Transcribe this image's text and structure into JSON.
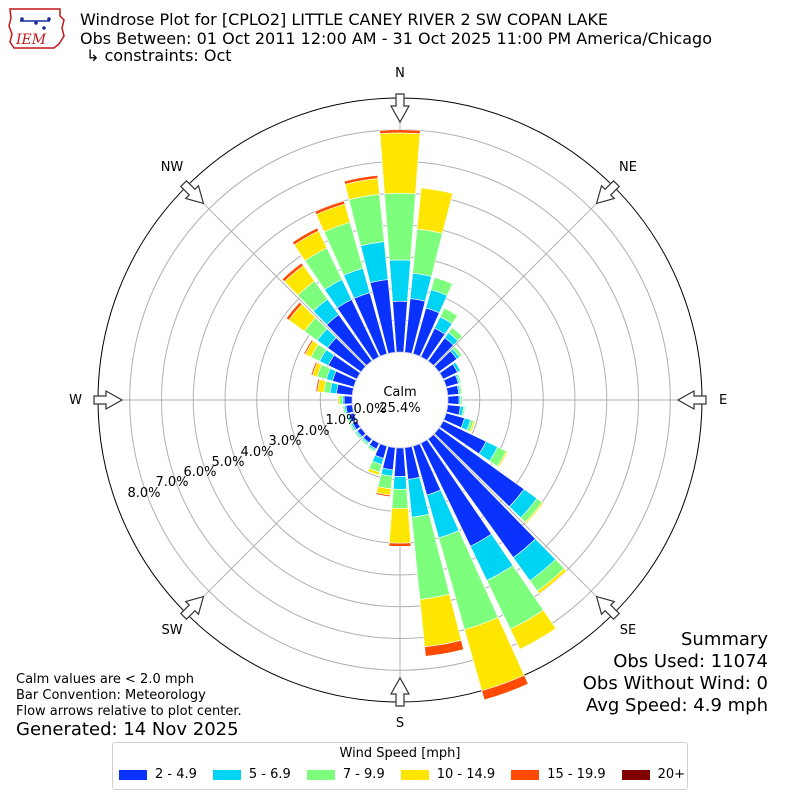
{
  "logo": {
    "text": "IEM"
  },
  "header": {
    "title": "Windrose Plot for [CPLO2] LITTLE CANEY RIVER 2 SW COPAN LAKE",
    "period": "Obs Between: 01 Oct 2011 12:00 AM - 31 Oct 2025 11:00 PM America/Chicago",
    "constraints": "↳ constraints: Oct"
  },
  "summary": {
    "title": "Summary",
    "obs_used": "Obs Used: 11074",
    "obs_without_wind": "Obs Without Wind: 0",
    "avg_speed": "Avg Speed: 4.9 mph"
  },
  "notes": {
    "calm": "Calm values are < 2.0 mph",
    "bar": "Bar Convention: Meteorology",
    "flow": "Flow arrows relative to plot center.",
    "generated": "Generated: 14 Nov 2025"
  },
  "chart_data": {
    "type": "windrose",
    "calm_label": "Calm",
    "calm_value": "25.4%",
    "compass": [
      "N",
      "NE",
      "E",
      "SE",
      "S",
      "SW",
      "W",
      "NW"
    ],
    "radial_ticks": [
      "0.0%",
      "1.0%",
      "2.0%",
      "3.0%",
      "4.0%",
      "5.0%",
      "6.0%",
      "7.0%",
      "8.0%"
    ],
    "radial_max": 8,
    "legend_title": "Wind Speed [mph]",
    "bins": [
      {
        "label": "2 - 4.9",
        "color": "#0a32ff"
      },
      {
        "label": "5 - 6.9",
        "color": "#00d4f4"
      },
      {
        "label": "7 - 9.9",
        "color": "#7dff7d"
      },
      {
        "label": "10 - 14.9",
        "color": "#ffe600"
      },
      {
        "label": "15 - 19.9",
        "color": "#ff4a00"
      },
      {
        "label": "20+",
        "color": "#800000"
      }
    ],
    "directions_deg": [
      0,
      10,
      20,
      30,
      40,
      50,
      60,
      70,
      80,
      90,
      100,
      110,
      120,
      130,
      140,
      150,
      160,
      170,
      180,
      190,
      200,
      210,
      220,
      230,
      240,
      250,
      260,
      270,
      280,
      290,
      300,
      310,
      320,
      330,
      340,
      350
    ],
    "cumulative": [
      [
        1.6,
        2.9,
        5.0,
        6.9,
        7.0,
        7.0
      ],
      [
        1.7,
        2.5,
        3.9,
        5.2,
        5.2,
        5.2
      ],
      [
        1.5,
        2.1,
        2.5,
        2.5,
        2.5,
        2.5
      ],
      [
        1.0,
        1.4,
        1.7,
        1.7,
        1.7,
        1.7
      ],
      [
        0.9,
        1.1,
        1.3,
        1.3,
        1.3,
        1.3
      ],
      [
        0.7,
        0.8,
        0.9,
        0.9,
        0.9,
        0.9
      ],
      [
        0.5,
        0.6,
        0.6,
        0.6,
        0.6,
        0.6
      ],
      [
        0.4,
        0.45,
        0.5,
        0.5,
        0.5,
        0.5
      ],
      [
        0.35,
        0.4,
        0.45,
        0.45,
        0.45,
        0.45
      ],
      [
        0.35,
        0.4,
        0.45,
        0.45,
        0.45,
        0.45
      ],
      [
        0.4,
        0.5,
        0.55,
        0.55,
        0.55,
        0.55
      ],
      [
        0.6,
        0.8,
        0.9,
        0.95,
        0.95,
        0.95
      ],
      [
        1.5,
        1.9,
        2.2,
        2.25,
        2.25,
        2.25
      ],
      [
        3.3,
        3.8,
        4.0,
        4.05,
        4.05,
        4.05
      ],
      [
        4.6,
        5.5,
        5.9,
        6.0,
        6.0,
        6.0
      ],
      [
        3.6,
        4.8,
        6.5,
        7.2,
        7.2,
        7.2
      ],
      [
        1.6,
        3.0,
        6.0,
        8.0,
        8.3,
        8.3
      ],
      [
        1.0,
        2.2,
        4.8,
        6.3,
        6.6,
        6.6
      ],
      [
        0.9,
        1.3,
        1.9,
        3.0,
        3.1,
        3.1
      ],
      [
        0.7,
        0.9,
        1.3,
        1.5,
        1.55,
        1.55
      ],
      [
        0.4,
        0.6,
        0.85,
        0.95,
        0.95,
        0.95
      ],
      [
        0.2,
        0.25,
        0.3,
        0.3,
        0.3,
        0.3
      ],
      [
        0.15,
        0.2,
        0.25,
        0.25,
        0.25,
        0.25
      ],
      [
        0.15,
        0.2,
        0.25,
        0.25,
        0.25,
        0.25
      ],
      [
        0.15,
        0.2,
        0.25,
        0.25,
        0.25,
        0.25
      ],
      [
        0.15,
        0.2,
        0.25,
        0.25,
        0.25,
        0.25
      ],
      [
        0.2,
        0.25,
        0.3,
        0.3,
        0.3,
        0.3
      ],
      [
        0.25,
        0.3,
        0.4,
        0.45,
        0.45,
        0.45
      ],
      [
        0.5,
        0.7,
        0.9,
        1.1,
        1.15,
        1.15
      ],
      [
        0.7,
        0.9,
        1.2,
        1.35,
        1.4,
        1.4
      ],
      [
        1.0,
        1.3,
        1.6,
        1.8,
        1.85,
        1.85
      ],
      [
        1.3,
        1.7,
        2.2,
        2.8,
        2.9,
        2.9
      ],
      [
        1.8,
        2.4,
        3.1,
        3.7,
        3.8,
        3.8
      ],
      [
        2.0,
        2.7,
        3.8,
        4.4,
        4.5,
        4.5
      ],
      [
        2.0,
        2.8,
        4.3,
        4.9,
        5.0,
        5.0
      ],
      [
        2.3,
        3.5,
        5.0,
        5.5,
        5.6,
        5.6
      ]
    ]
  }
}
